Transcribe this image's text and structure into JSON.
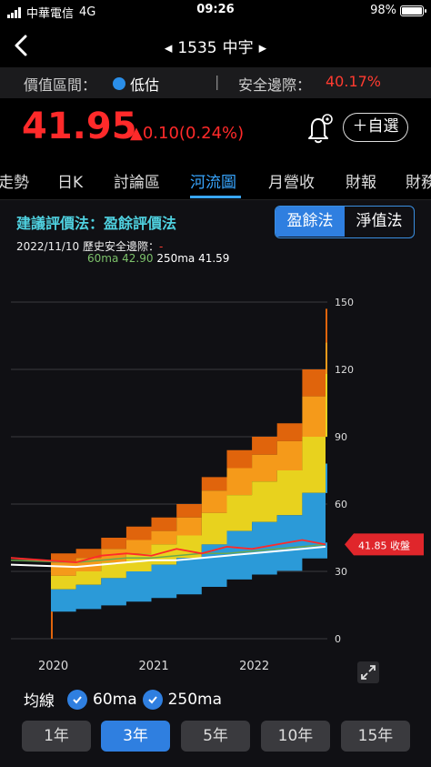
{
  "status_bar": {
    "carrier": "中華電信",
    "network": "4G",
    "time": "09:26",
    "battery": "98%",
    "battery_level": 0.98
  },
  "header": {
    "title_left_arrow": "◂",
    "code": "1535",
    "name": "中宇",
    "title_right_arrow": "▸"
  },
  "info": {
    "range_label": "價值區間：",
    "range_value": "低估",
    "separator": "|",
    "margin_label": "安全邊際：",
    "margin_value": "40.17%"
  },
  "quote": {
    "price": "41.95",
    "change": "▲0.10(0.24%)",
    "add_label": "＋自選"
  },
  "tabs": [
    {
      "label": "走勢"
    },
    {
      "label": "日K"
    },
    {
      "label": "討論區"
    },
    {
      "label": "河流圖"
    },
    {
      "label": "月營收"
    },
    {
      "label": "財報"
    },
    {
      "label": "財務"
    }
  ],
  "river": {
    "suggest_label": "建議評價法：盈餘評價法",
    "toggle": [
      "盈餘法",
      "淨值法"
    ],
    "date": "2022/11/10",
    "hist_margin_label": "歷史安全邊際：",
    "hist_margin_value": "-",
    "ma60": "60ma 42.90",
    "ma250": "250ma 41.59",
    "close_tag": "41.85 收盤",
    "ma_label": "均線",
    "ma_options": [
      "60ma",
      "250ma"
    ],
    "periods": [
      "1年",
      "3年",
      "5年",
      "10年",
      "15年"
    ],
    "active_period": "3年"
  },
  "colors": {
    "accent": "#2f7fe0",
    "up": "#ff2a2a",
    "band_blue": "#2b9ad8",
    "band_yellow": "#e8d21e",
    "band_orange": "#f59a1a",
    "band_dark_orange": "#e0640c"
  },
  "chart_data": {
    "type": "area",
    "x": [
      "2020-01",
      "2020-04",
      "2020-07",
      "2020-10",
      "2021-01",
      "2021-04",
      "2021-07",
      "2021-10",
      "2022-01",
      "2022-04",
      "2022-07",
      "2022-11"
    ],
    "xtick_labels": [
      "2020",
      "2021",
      "2022"
    ],
    "ylim": [
      0,
      150
    ],
    "yticks": [
      0,
      30,
      60,
      90,
      120,
      150
    ],
    "series": [
      {
        "values": [
          22,
          24,
          27,
          30,
          33,
          36,
          42,
          48,
          52,
          55,
          65,
          78
        ]
      },
      {
        "values": [
          28,
          30,
          34,
          38,
          42,
          46,
          56,
          64,
          70,
          75,
          90,
          118
        ]
      },
      {
        "values": [
          34,
          36,
          40,
          44,
          48,
          54,
          66,
          76,
          82,
          88,
          108,
          132
        ]
      },
      {
        "values": [
          38,
          40,
          45,
          50,
          54,
          60,
          72,
          84,
          90,
          96,
          120,
          147
        ]
      },
      {
        "values": [
          36,
          34,
          37,
          38,
          37,
          40,
          38,
          41,
          40,
          42,
          44,
          42
        ]
      },
      {
        "values": [
          35,
          34,
          35,
          36,
          36,
          37,
          38,
          38,
          39,
          40,
          41,
          42
        ]
      },
      {
        "values": [
          33,
          32,
          33,
          34,
          35,
          35,
          36,
          37,
          38,
          39,
          40,
          41
        ]
      }
    ]
  }
}
